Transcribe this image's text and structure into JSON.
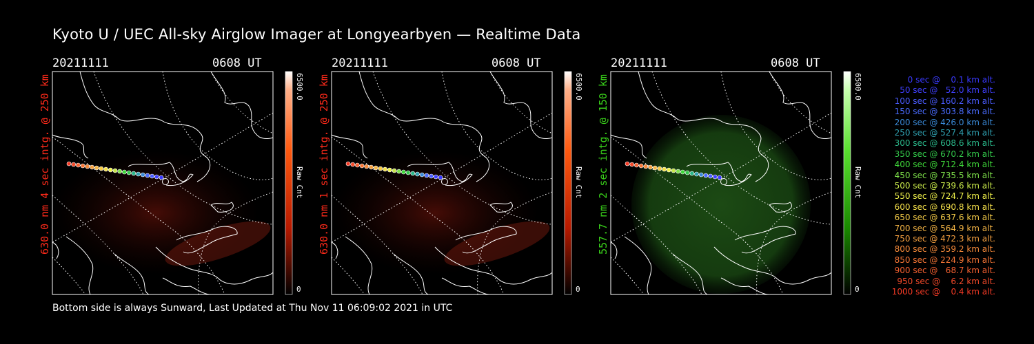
{
  "title": "Kyoto U / UEC All-sky Airglow Imager at Longyearbyen — Realtime Data",
  "footer": "Bottom side is always Sunward, Last Updated at Thu Nov 11 06:09:02 2021 in UTC",
  "colors": {
    "red_label": "#ff2a1a",
    "green_label": "#39d11a"
  },
  "chart_data": [
    {
      "type": "heatmap",
      "date": "20211111",
      "time": "0608 UT",
      "ylabel": "630.0 nm 4 sec intg. @ 250 km",
      "emission_color": "red",
      "colorbar": {
        "min_label": "0",
        "max_label": "6500.0",
        "unit": "Raw Cnt",
        "range": [
          0,
          6500
        ]
      }
    },
    {
      "type": "heatmap",
      "date": "20211111",
      "time": "0608 UT",
      "ylabel": "630.0 nm 1 sec intg. @ 250 km",
      "emission_color": "red",
      "colorbar": {
        "min_label": "0",
        "max_label": "6500.0",
        "unit": "Raw Cnt",
        "range": [
          0,
          6500
        ]
      }
    },
    {
      "type": "heatmap",
      "date": "20211111",
      "time": "0608 UT",
      "ylabel": "557.7 nm 2 sec intg. @ 150 km",
      "emission_color": "green",
      "colorbar": {
        "min_label": "0",
        "max_label": "6500.0",
        "unit": "Raw Cnt",
        "range": [
          0,
          6500
        ]
      }
    }
  ],
  "trajectory": {
    "points": [
      {
        "t": 0,
        "alt": 0.1,
        "label": "   0 sec @    0.1 km alt.",
        "color": "#3a3aff"
      },
      {
        "t": 50,
        "alt": 52.0,
        "label": "  50 sec @   52.0 km alt.",
        "color": "#4040ff"
      },
      {
        "t": 100,
        "alt": 160.2,
        "label": " 100 sec @ 160.2 km alt.",
        "color": "#4a5cff"
      },
      {
        "t": 150,
        "alt": 303.8,
        "label": " 150 sec @ 303.8 km alt.",
        "color": "#4a6cff"
      },
      {
        "t": 200,
        "alt": 426.0,
        "label": " 200 sec @ 426.0 km alt.",
        "color": "#3a8ad8"
      },
      {
        "t": 250,
        "alt": 527.4,
        "label": " 250 sec @ 527.4 km alt.",
        "color": "#2fa0b0"
      },
      {
        "t": 300,
        "alt": 608.6,
        "label": " 300 sec @ 608.6 km alt.",
        "color": "#2ab88a"
      },
      {
        "t": 350,
        "alt": 670.2,
        "label": " 350 sec @ 670.2 km alt.",
        "color": "#33c84a"
      },
      {
        "t": 400,
        "alt": 712.4,
        "label": " 400 sec @ 712.4 km alt.",
        "color": "#3fd83a"
      },
      {
        "t": 450,
        "alt": 735.5,
        "label": " 450 sec @ 735.5 km alt.",
        "color": "#7ee04a"
      },
      {
        "t": 500,
        "alt": 739.6,
        "label": " 500 sec @ 739.6 km alt.",
        "color": "#c8e84a"
      },
      {
        "t": 550,
        "alt": 724.7,
        "label": " 550 sec @ 724.7 km alt.",
        "color": "#eef04a"
      },
      {
        "t": 600,
        "alt": 690.8,
        "label": " 600 sec @ 690.8 km alt.",
        "color": "#f5e04a"
      },
      {
        "t": 650,
        "alt": 637.6,
        "label": " 650 sec @ 637.6 km alt.",
        "color": "#f5cc48"
      },
      {
        "t": 700,
        "alt": 564.9,
        "label": " 700 sec @ 564.9 km alt.",
        "color": "#f5b545"
      },
      {
        "t": 750,
        "alt": 472.3,
        "label": " 750 sec @ 472.3 km alt.",
        "color": "#f5a040"
      },
      {
        "t": 800,
        "alt": 359.2,
        "label": " 800 sec @ 359.2 km alt.",
        "color": "#f58a3a"
      },
      {
        "t": 850,
        "alt": 224.9,
        "label": " 850 sec @ 224.9 km alt.",
        "color": "#f57535"
      },
      {
        "t": 900,
        "alt": 68.7,
        "label": " 900 sec @   68.7 km alt.",
        "color": "#f56030"
      },
      {
        "t": 950,
        "alt": 6.2,
        "label": " 950 sec @    6.2 km alt.",
        "color": "#f54a2a"
      },
      {
        "t": 1000,
        "alt": 0.4,
        "label": "1000 sec @    0.4 km alt.",
        "color": "#f53a25"
      }
    ]
  }
}
